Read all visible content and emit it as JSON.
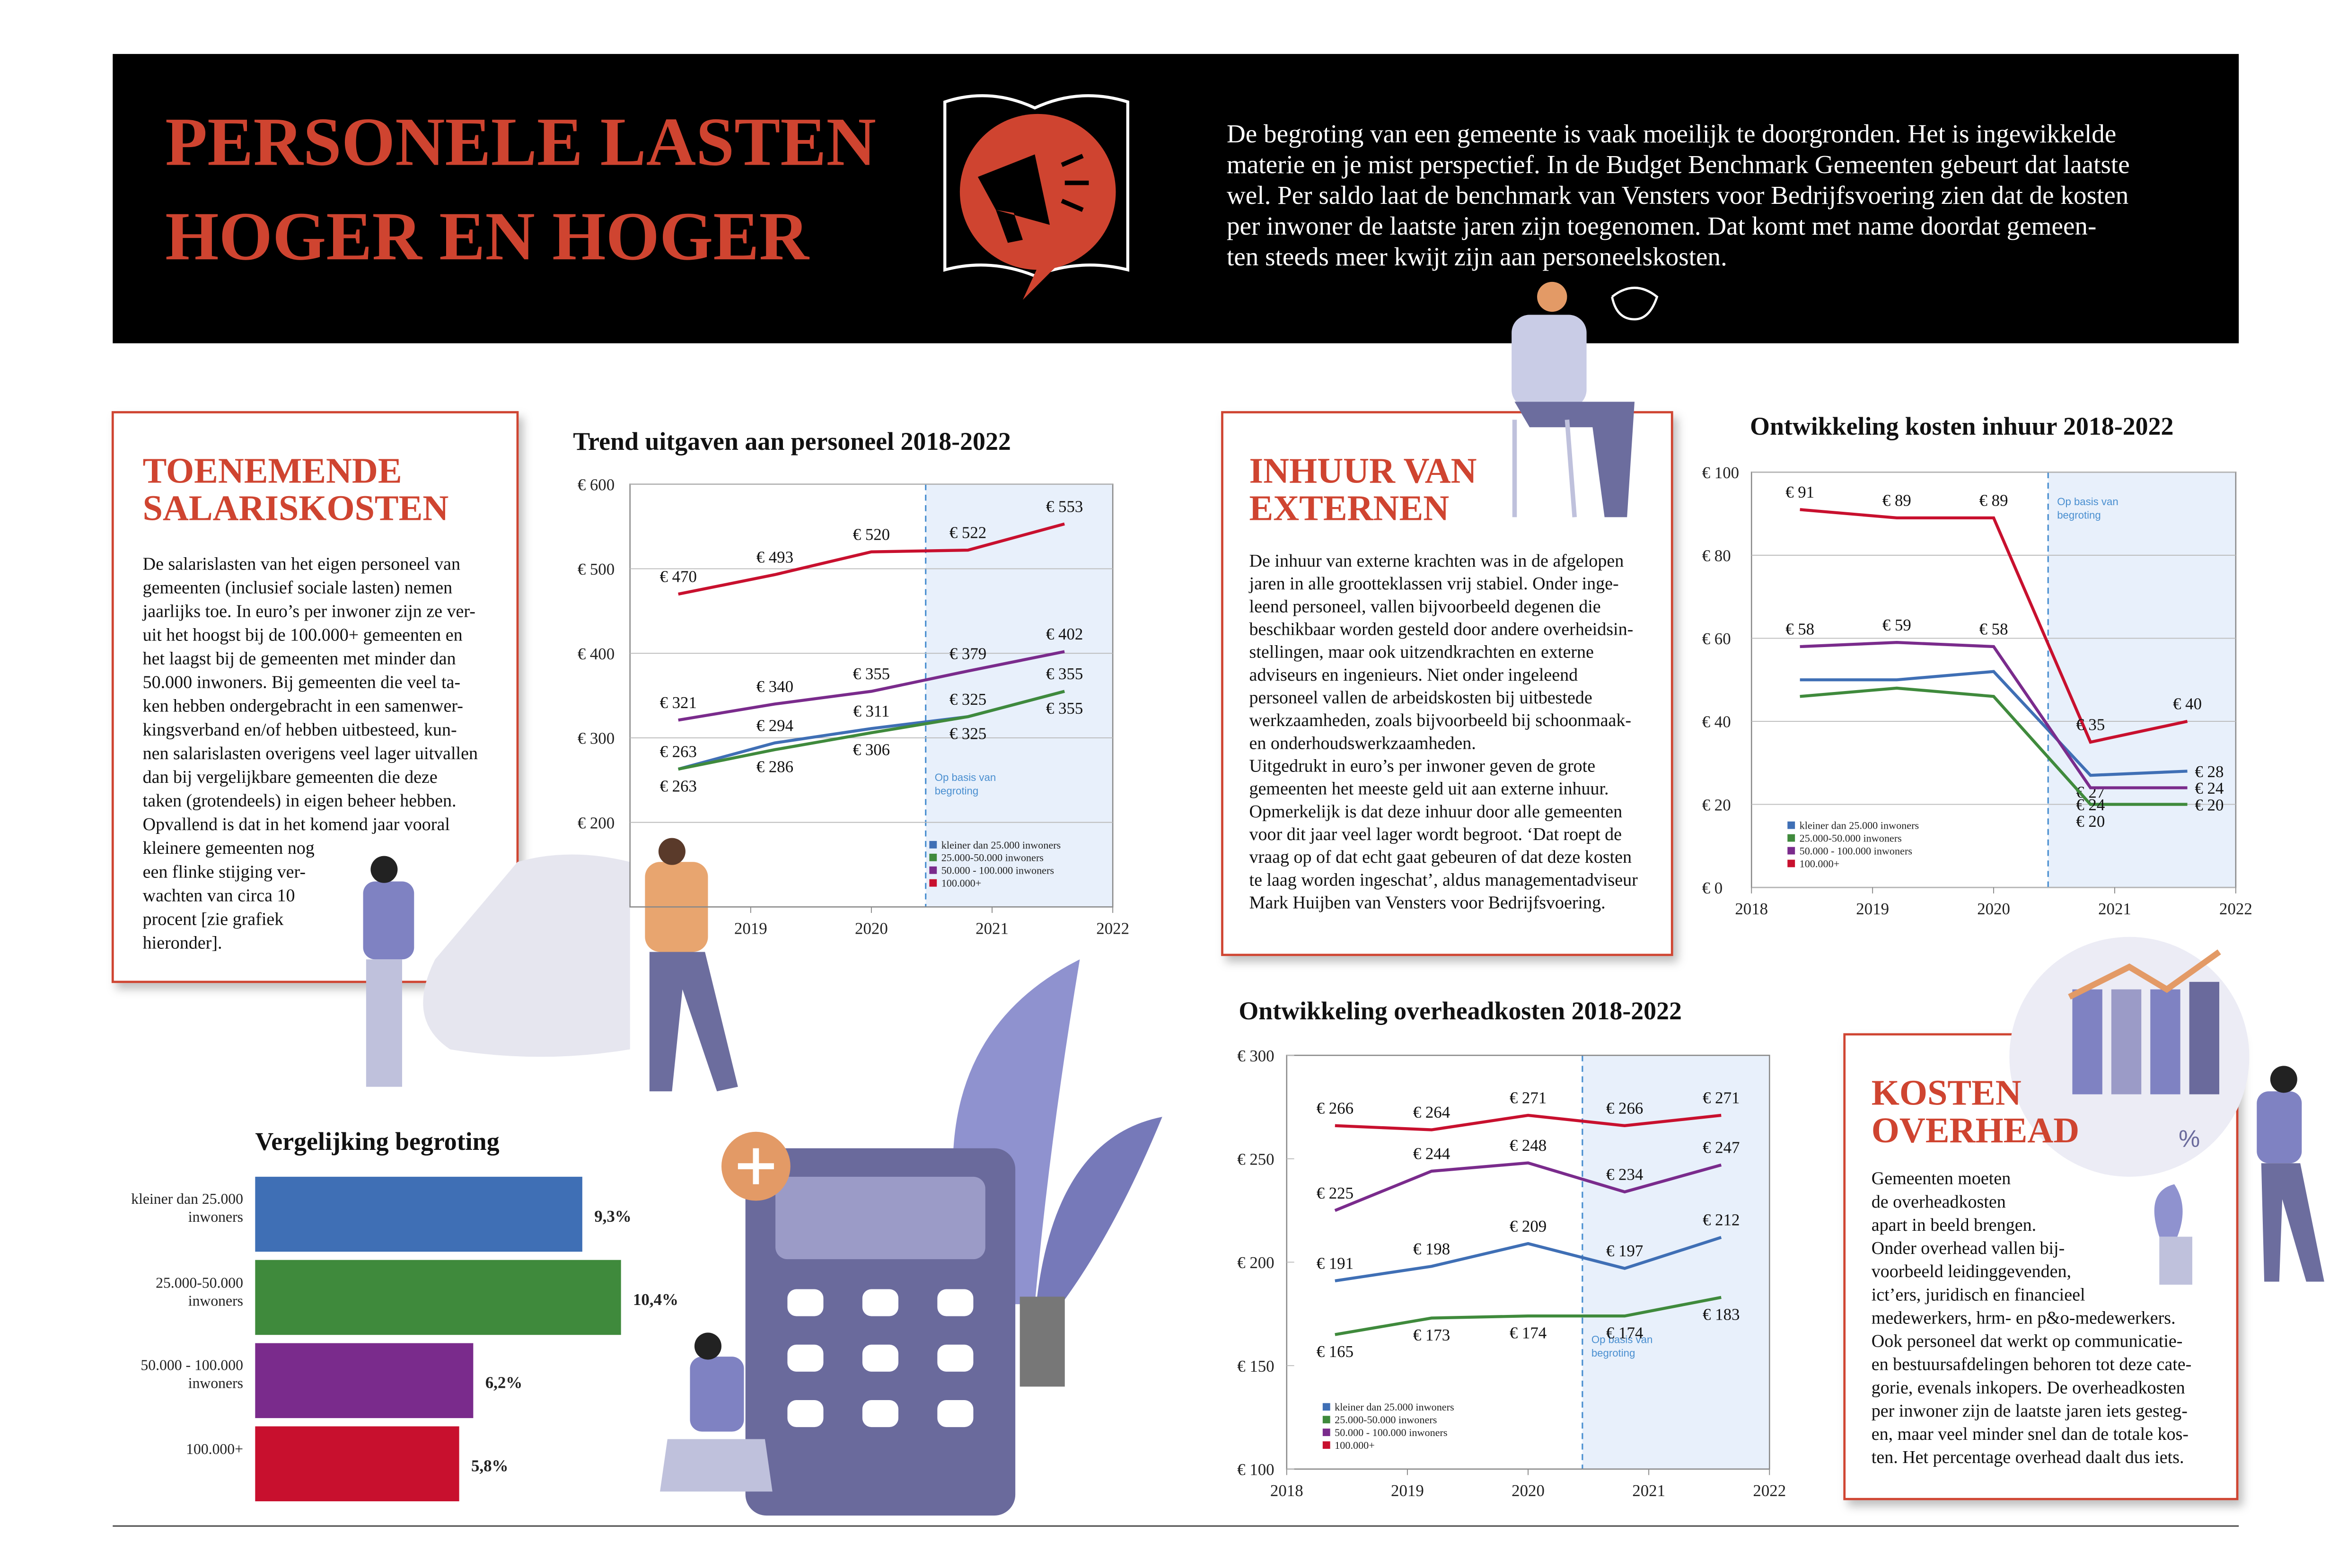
{
  "header": {
    "title": [
      "PERSONELE LASTEN",
      "HOGER EN HOGER"
    ],
    "intro": [
      "De begroting van een gemeente is vaak moeilijk te doorgronden. Het is ingewikkelde",
      "materie en je mist perspectief. In de Budget Benchmark Gemeenten gebeurt dat laatste",
      "wel. Per saldo laat de benchmark van Vensters voor Bedrijfsvoering zien dat de kosten",
      "per inwoner de laatste jaren zijn toegenomen. Dat komt met name doordat gemeen-",
      "ten steeds meer kwijt zijn aan personeelskosten."
    ]
  },
  "sections": [
    {
      "heading": [
        "TOENEMENDE",
        "SALARISKOSTEN"
      ],
      "body": [
        "De salarislasten van het eigen personeel van",
        "gemeenten (inclusief sociale lasten) nemen",
        "jaarlijks toe. In euro’s per inwoner zijn ze ver-",
        "uit het hoogst bij de 100.000+ gemeenten en",
        "het laagst bij de gemeenten met minder dan",
        "50.000 inwoners. Bij gemeenten die veel ta-",
        "ken hebben ondergebracht in een samenwer-",
        "kingsverband en/of hebben uitbesteed, kun-",
        "nen salarislasten overigens veel lager uitvallen",
        "dan bij vergelijkbare gemeenten die deze",
        "taken (grotendeels) in eigen beheer hebben.",
        "Opvallend is dat in het komend jaar vooral",
        "kleinere gemeenten nog",
        "een flinke stijging ver-",
        "wachten van circa 10",
        "procent [zie grafiek",
        "hieronder]."
      ]
    },
    {
      "heading": [
        "INHUUR VAN",
        "EXTERNEN"
      ],
      "body": [
        "De inhuur van externe krachten was in de afgelopen",
        "jaren in alle grootteklassen vrij stabiel. Onder inge-",
        "leend personeel, vallen bijvoorbeeld degenen die",
        "beschikbaar worden gesteld door andere overheidsin-",
        "stellingen, maar ook uitzendkrachten en externe",
        "adviseurs en ingenieurs. Niet onder ingeleend",
        "personeel vallen de arbeidskosten bij uitbestede",
        "werkzaamheden, zoals bijvoorbeeld bij schoonmaak-",
        "en onderhoudswerkzaamheden.",
        "Uitgedrukt in euro’s per inwoner geven de grote",
        "gemeenten het meeste geld uit aan externe inhuur.",
        "Opmerkelijk is dat deze inhuur door alle gemeenten",
        "voor dit jaar veel lager wordt begroot. ‘Dat roept de",
        "vraag op of dat echt gaat gebeuren of dat deze kosten",
        "te laag worden ingeschat’, aldus managementadviseur",
        "Mark Huijben van Vensters voor Bedrijfsvoering."
      ]
    },
    {
      "heading": [
        "KOSTEN",
        "OVERHEAD"
      ],
      "body": [
        "Gemeenten moeten",
        "de overheadkosten",
        "apart in beeld brengen.",
        "Onder overhead vallen bij-",
        "voorbeeld leidinggevenden,",
        "ict’ers, juridisch en financieel",
        "medewerkers, hrm- en p&o-medewerkers.",
        "Ook personeel dat werkt op communicatie-",
        "en bestuursafdelingen behoren tot deze cate-",
        "gorie, evenals inkopers. De overheadkosten",
        "per inwoner zijn de laatste jaren iets gesteg-",
        "en, maar veel minder snel dan de totale kos-",
        "ten. Het percentage overhead daalt dus iets."
      ]
    }
  ],
  "illustration_text": "%",
  "chart_data": [
    {
      "type": "line",
      "title": "Trend uitgaven aan personeel 2018-2022",
      "annotation": "Op basis van begroting",
      "shade_from": 2020.45,
      "legend": "lower right",
      "grid": true,
      "x": [
        2018.4,
        2019.2,
        2020,
        2020.8,
        2021.6
      ],
      "xlim": [
        2018,
        2022
      ],
      "xticks": [
        2019,
        2020,
        2021,
        2022
      ],
      "ylim": [
        100,
        600
      ],
      "yticks": [
        {
          "value": 200,
          "label": "€ 200"
        },
        {
          "value": 300,
          "label": "€ 300"
        },
        {
          "value": 400,
          "label": "€ 400"
        },
        {
          "value": 500,
          "label": "€ 500"
        },
        {
          "value": 600,
          "label": "€ 600"
        }
      ],
      "series": [
        {
          "name": "kleiner dan 25.000 inwoners",
          "color": "#3f6fb5",
          "values": [
            263,
            294,
            311,
            325,
            355
          ],
          "value_labels": [
            "€ 263",
            "€ 294",
            "€ 311",
            "€ 325",
            "€ 355"
          ]
        },
        {
          "name": "25.000-50.000 inwoners",
          "color": "#3f8a3c",
          "values": [
            263,
            286,
            306,
            325,
            355
          ],
          "value_labels": [
            "€ 263",
            "€ 286",
            "€ 306",
            "€ 325",
            "€ 355"
          ]
        },
        {
          "name": "50.000 - 100.000 inwoners",
          "color": "#7a2b8c",
          "values": [
            321,
            340,
            355,
            379,
            402
          ],
          "value_labels": [
            "€ 321",
            "€ 340",
            "€ 355",
            "€ 379",
            "€ 402"
          ]
        },
        {
          "name": "100.000+",
          "color": "#c8102e",
          "values": [
            470,
            493,
            520,
            522,
            553
          ],
          "value_labels": [
            "€ 470",
            "€ 493",
            "€ 520",
            "€ 522",
            "€ 553"
          ]
        }
      ]
    },
    {
      "type": "line",
      "title": "Ontwikkeling kosten inhuur 2018-2022",
      "annotation": "Op basis van begroting",
      "shade_from": 2020.45,
      "legend": "lower left",
      "grid": true,
      "x": [
        2018.4,
        2019.2,
        2020,
        2020.8,
        2021.6
      ],
      "xlim": [
        2018,
        2022
      ],
      "xticks": [
        2018,
        2019,
        2020,
        2021,
        2022
      ],
      "ylim": [
        0,
        100
      ],
      "yticks": [
        {
          "value": 0,
          "label": "€ 0"
        },
        {
          "value": 20,
          "label": "€ 20"
        },
        {
          "value": 40,
          "label": "€ 40"
        },
        {
          "value": 60,
          "label": "€ 60"
        },
        {
          "value": 80,
          "label": "€ 80"
        },
        {
          "value": 100,
          "label": "€ 100"
        }
      ],
      "series": [
        {
          "name": "kleiner dan 25.000 inwoners",
          "color": "#3f6fb5",
          "values": [
            50,
            50,
            52,
            27,
            28
          ],
          "value_labels": [
            null,
            null,
            null,
            "€ 27",
            "€ 28"
          ]
        },
        {
          "name": "25.000-50.000 inwoners",
          "color": "#3f8a3c",
          "values": [
            46,
            48,
            46,
            20,
            20
          ],
          "value_labels": [
            null,
            null,
            null,
            "€ 20",
            "€ 20"
          ]
        },
        {
          "name": "50.000 - 100.000 inwoners",
          "color": "#7a2b8c",
          "values": [
            58,
            59,
            58,
            24,
            24
          ],
          "value_labels": [
            "€ 58",
            "€ 59",
            "€ 58",
            "€ 24",
            "€ 24"
          ]
        },
        {
          "name": "100.000+",
          "color": "#c8102e",
          "values": [
            91,
            89,
            89,
            35,
            40
          ],
          "value_labels": [
            "€ 91",
            "€ 89",
            "€ 89",
            "€ 35",
            "€ 40"
          ]
        }
      ]
    },
    {
      "type": "line",
      "title": "Ontwikkeling overheadkosten 2018-2022",
      "annotation": "Op basis van begroting",
      "shade_from": 2020.45,
      "legend": "lower left",
      "grid": false,
      "x": [
        2018.4,
        2019.2,
        2020,
        2020.8,
        2021.6
      ],
      "xlim": [
        2018,
        2022
      ],
      "xticks": [
        2018,
        2019,
        2020,
        2021,
        2022
      ],
      "ylim": [
        100,
        300
      ],
      "yticks": [
        {
          "value": 100,
          "label": "€ 100"
        },
        {
          "value": 150,
          "label": "€ 150"
        },
        {
          "value": 200,
          "label": "€ 200"
        },
        {
          "value": 250,
          "label": "€ 250"
        },
        {
          "value": 300,
          "label": "€ 300"
        }
      ],
      "series": [
        {
          "name": "kleiner dan 25.000 inwoners",
          "color": "#3f6fb5",
          "values": [
            191,
            198,
            209,
            197,
            212
          ],
          "value_labels": [
            "€ 191",
            "€ 198",
            "€ 209",
            "€ 197",
            "€ 212"
          ]
        },
        {
          "name": "25.000-50.000 inwoners",
          "color": "#3f8a3c",
          "values": [
            165,
            173,
            174,
            174,
            183
          ],
          "value_labels": [
            "€ 165",
            "€ 173",
            "€ 174",
            "€ 174",
            "€ 183"
          ]
        },
        {
          "name": "50.000 - 100.000 inwoners",
          "color": "#7a2b8c",
          "values": [
            225,
            244,
            248,
            234,
            247
          ],
          "value_labels": [
            "€ 225",
            "€ 244",
            "€ 248",
            "€ 234",
            "€ 247"
          ]
        },
        {
          "name": "100.000+",
          "color": "#c8102e",
          "values": [
            266,
            264,
            271,
            266,
            271
          ],
          "value_labels": [
            "€ 266",
            "€ 264",
            "€ 271",
            "€ 266",
            "€ 271"
          ]
        }
      ]
    },
    {
      "type": "hbar",
      "title": "Vergelijking begroting",
      "categories": [
        "kleiner dan 25.000 inwoners",
        "25.000-50.000 inwoners",
        "50.000 - 100.000 inwoners",
        "100.000+"
      ],
      "values": [
        9.3,
        10.4,
        6.2,
        5.8
      ],
      "value_labels": [
        "9,3%",
        "10,4%",
        "6,2%",
        "5,8%"
      ],
      "colors": [
        "#3f6fb5",
        "#3f8a3c",
        "#7a2b8c",
        "#c8102e"
      ]
    }
  ]
}
